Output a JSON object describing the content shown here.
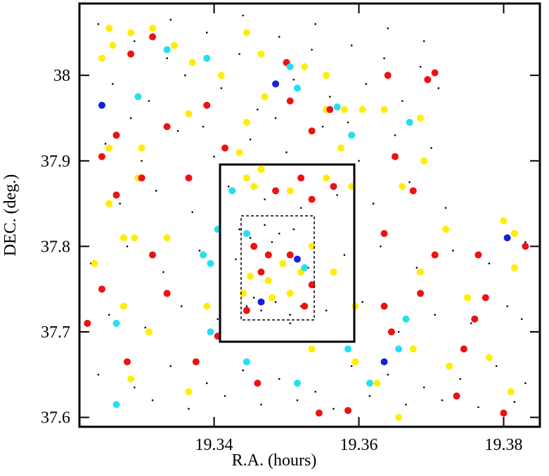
{
  "chart_data": {
    "type": "scatter",
    "xlabel": "R.A. (hours)",
    "ylabel": "DEC. (deg.)",
    "xlim": [
      19.3214,
      19.385
    ],
    "ylim": [
      37.589,
      38.084
    ],
    "xticks": [
      19.34,
      19.36,
      19.38
    ],
    "yticks": [
      37.6,
      37.7,
      37.8,
      37.9,
      38
    ],
    "series": [
      {
        "color": "#000000",
        "x": [
          19.324,
          19.329,
          19.334,
          19.339,
          19.344,
          19.349,
          19.354,
          19.359,
          19.364,
          19.369,
          19.326,
          19.331,
          19.336,
          19.341,
          19.346,
          19.351,
          19.356,
          19.361,
          19.366,
          19.371,
          19.325,
          19.33,
          19.335,
          19.34,
          19.345,
          19.35,
          19.355,
          19.36,
          19.365,
          19.37,
          19.327,
          19.332,
          19.337,
          19.342,
          19.347,
          19.352,
          19.357,
          19.362,
          19.367,
          19.372,
          19.323,
          19.328,
          19.333,
          19.338,
          19.343,
          19.348,
          19.353,
          19.358,
          19.363,
          19.368,
          19.373,
          19.378,
          19.383,
          19.3255,
          19.3305,
          19.3355,
          19.3405,
          19.3455,
          19.3505,
          19.3555,
          19.3605,
          19.3655,
          19.3705,
          19.3755,
          19.3805,
          19.3825,
          19.324,
          19.329,
          19.334,
          19.339,
          19.344,
          19.349,
          19.354,
          19.359,
          19.364,
          19.369,
          19.374,
          19.379,
          19.383,
          19.3265,
          19.3315,
          19.3365,
          19.3415,
          19.3465,
          19.3515,
          19.3565,
          19.3615,
          19.3665,
          19.3715,
          19.3765,
          19.3815,
          19.3435,
          19.345,
          19.347,
          19.349,
          19.351,
          19.3445,
          19.3465,
          19.3485,
          19.3505,
          19.352,
          19.3335,
          19.3435,
          19.3535,
          19.3635,
          19.3685,
          19.3285,
          19.3385,
          19.3485,
          19.3585
        ],
        "values": [
          38.06,
          38.04,
          38.065,
          38.05,
          38.07,
          38.045,
          38.06,
          38.035,
          38.055,
          38.04,
          37.99,
          37.97,
          38.0,
          37.985,
          37.96,
          37.995,
          37.975,
          37.99,
          37.97,
          37.985,
          37.92,
          37.9,
          37.935,
          37.905,
          37.925,
          37.91,
          37.94,
          37.9,
          37.93,
          37.915,
          37.85,
          37.865,
          37.84,
          37.87,
          37.855,
          37.845,
          37.86,
          37.85,
          37.875,
          37.845,
          37.78,
          37.8,
          37.77,
          37.795,
          37.785,
          37.805,
          37.775,
          37.79,
          37.8,
          37.775,
          37.795,
          37.78,
          37.805,
          37.72,
          37.705,
          37.73,
          37.715,
          37.74,
          37.71,
          37.725,
          37.735,
          37.7,
          37.72,
          37.71,
          37.73,
          37.715,
          37.65,
          37.635,
          37.66,
          37.64,
          37.655,
          37.645,
          37.63,
          37.66,
          37.65,
          37.635,
          37.645,
          37.66,
          37.64,
          37.615,
          37.62,
          37.61,
          37.625,
          37.615,
          37.62,
          37.61,
          37.625,
          37.615,
          37.62,
          37.612,
          37.618,
          37.82,
          37.81,
          37.825,
          37.815,
          37.82,
          37.73,
          37.725,
          37.735,
          37.72,
          37.73,
          38.02,
          38.025,
          38.03,
          38.02,
          38.01,
          37.95,
          37.94,
          37.95,
          37.945
        ]
      },
      {
        "color": "#ffee00",
        "x": [
          19.3255,
          19.326,
          19.3285,
          19.3245,
          19.3315,
          19.3345,
          19.337,
          19.341,
          19.3445,
          19.3465,
          19.3525,
          19.3555,
          19.358,
          19.3555,
          19.3605,
          19.3365,
          19.3445,
          19.347,
          19.3255,
          19.33,
          19.3435,
          19.3575,
          19.3445,
          19.3465,
          19.3455,
          19.3505,
          19.3555,
          19.359,
          19.3295,
          19.3255,
          19.329,
          19.3275,
          19.3335,
          19.3455,
          19.3475,
          19.3495,
          19.345,
          19.3475,
          19.3505,
          19.344,
          19.348,
          19.352,
          19.3565,
          19.3535,
          19.3535,
          19.3595,
          19.3625,
          19.3675,
          19.3685,
          19.372,
          19.375,
          19.38,
          19.3815,
          19.3815,
          19.3725,
          19.378,
          19.381,
          19.3365,
          19.3285,
          19.3235,
          19.3275,
          19.331,
          19.339,
          19.3595,
          19.3655,
          19.3635,
          19.3685,
          19.369,
          19.366
        ],
        "values": [
          38.055,
          38.035,
          38.05,
          38.02,
          38.055,
          38.035,
          38.015,
          38.0,
          38.05,
          38.025,
          38.01,
          38.0,
          37.96,
          37.96,
          37.96,
          37.955,
          37.945,
          37.975,
          37.915,
          37.915,
          37.91,
          37.915,
          37.88,
          37.89,
          37.87,
          37.865,
          37.88,
          37.87,
          37.88,
          37.85,
          37.81,
          37.81,
          37.81,
          37.8,
          37.79,
          37.78,
          37.765,
          37.76,
          37.745,
          37.745,
          37.74,
          37.77,
          37.77,
          37.8,
          37.68,
          37.665,
          37.64,
          37.68,
          37.77,
          37.82,
          37.74,
          37.83,
          37.815,
          37.775,
          37.66,
          37.67,
          37.63,
          37.63,
          37.645,
          37.78,
          37.73,
          37.7,
          37.73,
          37.73,
          37.6,
          37.96,
          37.95,
          37.9,
          37.87
        ]
      },
      {
        "color": "#ee1111",
        "x": [
          19.3225,
          19.3265,
          19.3245,
          19.3265,
          19.33,
          19.3335,
          19.3365,
          19.3315,
          19.3285,
          19.339,
          19.35,
          19.3505,
          19.3535,
          19.356,
          19.3415,
          19.3485,
          19.352,
          19.3535,
          19.3565,
          19.364,
          19.3695,
          19.3705,
          19.365,
          19.3635,
          19.3675,
          19.3705,
          19.3685,
          19.3645,
          19.3635,
          19.3765,
          19.3775,
          19.376,
          19.3745,
          19.3735,
          19.38,
          19.383,
          19.3545,
          19.3585,
          19.346,
          19.3375,
          19.3335,
          19.3315,
          19.3245,
          19.328,
          19.3405,
          19.3465,
          19.3455,
          19.3505,
          19.3535,
          19.3525,
          19.3445,
          19.3475
        ],
        "values": [
          37.71,
          37.86,
          37.905,
          37.93,
          37.88,
          37.94,
          37.88,
          38.045,
          38.025,
          37.965,
          38.015,
          37.97,
          37.935,
          37.96,
          37.915,
          37.865,
          37.88,
          37.855,
          37.87,
          38.0,
          37.995,
          38.003,
          37.905,
          37.815,
          37.865,
          37.79,
          37.745,
          37.7,
          37.73,
          37.79,
          37.74,
          37.715,
          37.68,
          37.625,
          37.605,
          37.8,
          37.605,
          37.608,
          37.64,
          37.665,
          37.745,
          37.79,
          37.75,
          37.665,
          37.695,
          37.77,
          37.8,
          37.79,
          37.755,
          37.73,
          37.725,
          37.79
        ]
      },
      {
        "color": "#22e0f0",
        "x": [
          19.3335,
          19.339,
          19.3295,
          19.3505,
          19.3515,
          19.357,
          19.359,
          19.367,
          19.3425,
          19.3405,
          19.3385,
          19.3395,
          19.3395,
          19.3445,
          19.3515,
          19.3585,
          19.3615,
          19.3655,
          19.3665,
          19.3265,
          19.3265,
          19.3525,
          19.3445
        ],
        "values": [
          38.03,
          38.02,
          37.975,
          38.01,
          37.985,
          37.963,
          37.93,
          37.945,
          37.865,
          37.82,
          37.79,
          37.78,
          37.7,
          37.665,
          37.64,
          37.68,
          37.64,
          37.68,
          37.715,
          37.615,
          37.71,
          37.775,
          37.815
        ]
      },
      {
        "color": "#1122dd",
        "x": [
          19.3245,
          19.3485,
          19.3465,
          19.3635,
          19.3805,
          19.3515
        ],
        "values": [
          37.965,
          37.99,
          37.735,
          37.665,
          37.81,
          37.785
        ]
      }
    ]
  }
}
